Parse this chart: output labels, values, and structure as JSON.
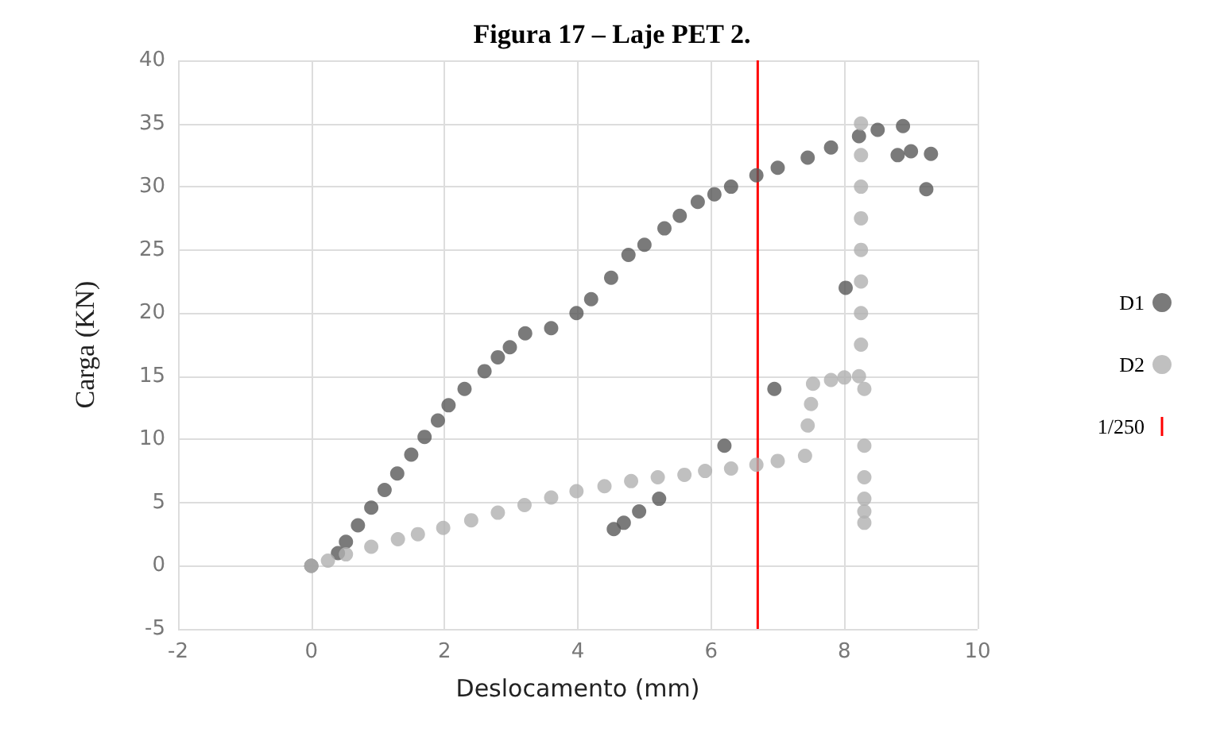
{
  "chart_data": {
    "type": "scatter",
    "title": "Figura 17 – Laje PET 2.",
    "xlabel": "Deslocamento (mm)",
    "ylabel": "Carga (KN)",
    "xlim": [
      -2,
      10
    ],
    "xticks": [
      -2,
      0,
      2,
      4,
      6,
      8,
      10
    ],
    "ylim": [
      -5,
      40
    ],
    "yticks": [
      -5,
      0,
      5,
      10,
      15,
      20,
      25,
      30,
      35,
      40
    ],
    "grid": true,
    "legend": "right",
    "series": [
      {
        "name": "D1",
        "color": "#595959",
        "marker": "circle",
        "x": [
          0,
          0.4,
          0.52,
          0.7,
          0.9,
          1.1,
          1.29,
          1.5,
          1.7,
          1.9,
          2.06,
          2.3,
          2.6,
          2.8,
          2.98,
          3.21,
          3.6,
          3.98,
          4.2,
          4.5,
          4.76,
          5.0,
          5.3,
          5.53,
          5.8,
          6.05,
          6.3,
          6.68,
          7.0,
          7.45,
          7.8,
          8.22,
          8.5,
          8.88,
          8.8,
          9.0,
          9.3,
          9.23,
          8.02,
          6.95,
          6.2,
          5.22,
          4.92,
          4.69,
          4.54
        ],
        "values": [
          0,
          1.0,
          1.9,
          3.2,
          4.6,
          6.0,
          7.3,
          8.8,
          10.2,
          11.5,
          12.7,
          14.0,
          15.4,
          16.5,
          17.3,
          18.4,
          18.8,
          20.0,
          21.1,
          22.8,
          24.6,
          25.4,
          26.7,
          27.7,
          28.8,
          29.4,
          30.0,
          30.9,
          31.5,
          32.3,
          33.1,
          34.0,
          34.5,
          34.8,
          32.5,
          32.8,
          32.6,
          29.8,
          22.0,
          14.0,
          9.5,
          5.3,
          4.3,
          3.4,
          2.9
        ]
      },
      {
        "name": "D2",
        "color": "#b0b0b0",
        "marker": "circle",
        "x": [
          0,
          0.25,
          0.52,
          0.9,
          1.3,
          1.6,
          1.98,
          2.4,
          2.8,
          3.2,
          3.6,
          3.98,
          4.4,
          4.8,
          5.2,
          5.6,
          5.91,
          6.3,
          6.68,
          7.0,
          7.41,
          7.45,
          7.5,
          7.53,
          7.8,
          8.0,
          8.22,
          8.25,
          8.25,
          8.25,
          8.25,
          8.25,
          8.25,
          8.25,
          8.25,
          8.3,
          8.3,
          8.3,
          8.3,
          8.3,
          8.3
        ],
        "values": [
          0,
          0.4,
          0.9,
          1.5,
          2.1,
          2.5,
          3.0,
          3.6,
          4.2,
          4.8,
          5.4,
          5.9,
          6.3,
          6.7,
          7.0,
          7.2,
          7.5,
          7.7,
          8.0,
          8.3,
          8.7,
          11.1,
          12.8,
          14.4,
          14.7,
          14.9,
          15.0,
          17.5,
          20.0,
          22.5,
          25.0,
          27.5,
          30.0,
          32.5,
          35.0,
          14.0,
          9.5,
          7.0,
          5.3,
          4.3,
          3.4
        ]
      },
      {
        "name": "1/250",
        "type": "line",
        "marker": "none",
        "color": "#ff0000",
        "x": [
          6.7,
          6.7
        ],
        "values": [
          -5,
          40
        ]
      }
    ]
  }
}
